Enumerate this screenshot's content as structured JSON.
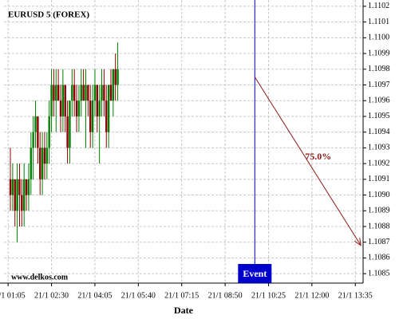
{
  "chart_data": {
    "type": "candlestick",
    "title": "EURUSD 5 (FOREX)",
    "source": "www.delkos.com",
    "xlabel": "Date",
    "x": [
      70,
      75,
      80,
      85,
      90,
      95,
      100,
      105,
      110,
      115,
      120,
      125,
      130,
      135,
      140,
      145,
      150,
      155,
      160,
      165,
      170,
      175,
      180,
      185,
      190,
      195,
      200,
      205,
      210,
      215,
      220,
      225,
      230,
      235,
      240,
      245,
      250,
      255,
      260,
      265,
      270,
      275,
      280,
      285,
      290,
      295,
      300,
      305
    ],
    "open": [
      1.1091,
      1.109,
      1.1091,
      1.1089,
      1.1091,
      1.109,
      1.1089,
      1.1091,
      1.109,
      1.1091,
      1.1093,
      1.1094,
      1.1095,
      1.1093,
      1.1091,
      1.1093,
      1.1092,
      1.1093,
      1.1095,
      1.1097,
      1.1096,
      1.1097,
      1.1096,
      1.1095,
      1.1097,
      1.1095,
      1.1093,
      1.1096,
      1.1097,
      1.1096,
      1.1095,
      1.1096,
      1.1097,
      1.1096,
      1.1097,
      1.1096,
      1.1094,
      1.1096,
      1.1097,
      1.1095,
      1.1096,
      1.1097,
      1.1096,
      1.1094,
      1.1097,
      1.1096,
      1.1098,
      1.1097
    ],
    "high": [
      1.1093,
      1.1092,
      1.1091,
      1.1092,
      1.1092,
      1.1091,
      1.1092,
      1.1091,
      1.1092,
      1.1094,
      1.1095,
      1.1096,
      1.1095,
      1.1094,
      1.1094,
      1.1094,
      1.1094,
      1.1096,
      1.1098,
      1.1098,
      1.1098,
      1.1098,
      1.1097,
      1.1098,
      1.1097,
      1.1096,
      1.1096,
      1.1098,
      1.1098,
      1.1097,
      1.1097,
      1.1098,
      1.1098,
      1.1098,
      1.1097,
      1.1097,
      1.1097,
      1.1098,
      1.1097,
      1.1097,
      1.1098,
      1.1098,
      1.1097,
      1.1097,
      1.1098,
      1.1098,
      1.1099,
      1.10997
    ],
    "low": [
      1.1089,
      1.1089,
      1.1088,
      1.1087,
      1.1088,
      1.1088,
      1.1088,
      1.1089,
      1.1089,
      1.109,
      1.1091,
      1.1093,
      1.1092,
      1.109,
      1.109,
      1.1091,
      1.1091,
      1.1092,
      1.1094,
      1.1095,
      1.1094,
      1.1096,
      1.1094,
      1.1094,
      1.1094,
      1.1092,
      1.1092,
      1.1095,
      1.1095,
      1.1094,
      1.1094,
      1.1095,
      1.1096,
      1.1093,
      1.1095,
      1.1093,
      1.1093,
      1.1095,
      1.1094,
      1.1092,
      1.1095,
      1.1095,
      1.1093,
      1.1093,
      1.1096,
      1.1095,
      1.1096,
      1.1096
    ],
    "close": [
      1.109,
      1.1091,
      1.1089,
      1.1091,
      1.109,
      1.1089,
      1.1091,
      1.109,
      1.1091,
      1.1093,
      1.1094,
      1.1095,
      1.1093,
      1.1091,
      1.1093,
      1.1092,
      1.1093,
      1.1095,
      1.1097,
      1.1096,
      1.1097,
      1.1096,
      1.1095,
      1.1097,
      1.1095,
      1.1093,
      1.1096,
      1.1097,
      1.1096,
      1.1095,
      1.1096,
      1.1097,
      1.1096,
      1.1097,
      1.1096,
      1.1094,
      1.1096,
      1.1097,
      1.1095,
      1.1096,
      1.1097,
      1.1096,
      1.1094,
      1.1097,
      1.1096,
      1.1098,
      1.1097,
      1.1098
    ],
    "up_color": "#008000",
    "down_color": "#8b0000",
    "xlim": [
      56,
      842
    ],
    "xticks": [
      {
        "value": 65,
        "label": "21/1 01:05"
      },
      {
        "value": 160,
        "label": "21/1 02:30"
      },
      {
        "value": 255,
        "label": "21/1 04:05"
      },
      {
        "value": 350,
        "label": "21/1 05:40"
      },
      {
        "value": 445,
        "label": "21/1 07:15"
      },
      {
        "value": 540,
        "label": "21/1 08:50"
      },
      {
        "value": 635,
        "label": "21/1 10:25"
      },
      {
        "value": 730,
        "label": "21/1 12:00"
      },
      {
        "value": 825,
        "label": "21/1 13:35"
      }
    ],
    "ylim": [
      1.10844,
      1.11024
    ],
    "yticks": [
      1.1085,
      1.1086,
      1.1087,
      1.1088,
      1.1089,
      {
        "value": 1.109,
        "label": "1.1090"
      },
      1.1091,
      1.1092,
      1.1093,
      1.1094,
      1.1095,
      1.1096,
      1.1097,
      1.1098,
      1.1099,
      {
        "value": 1.11,
        "label": "1.1100"
      },
      1.1101,
      1.1102
    ],
    "grid": true,
    "event": {
      "label": "Event",
      "x": 605,
      "color": "#0000cc"
    },
    "forecast": {
      "label": "75.0%",
      "x": [
        605,
        837
      ],
      "y": [
        1.10975,
        1.10868
      ],
      "color": "#8b1a1a"
    }
  }
}
